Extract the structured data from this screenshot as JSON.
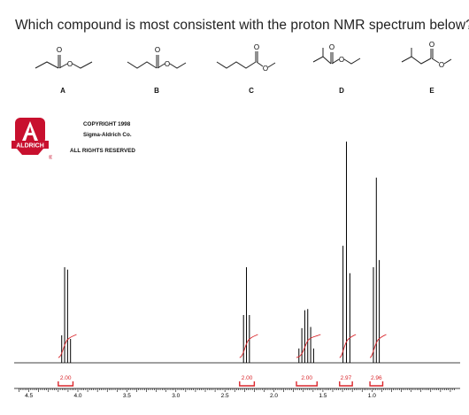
{
  "question": "Which compound is most consistent with the proton NMR spectrum below?",
  "compounds": [
    {
      "label": "A",
      "icon": "ester-structure-icon"
    },
    {
      "label": "B",
      "icon": "ester-structure-icon"
    },
    {
      "label": "C",
      "icon": "ester-structure-icon"
    },
    {
      "label": "D",
      "icon": "ester-structure-icon"
    },
    {
      "label": "E",
      "icon": "ester-structure-icon"
    }
  ],
  "atom_labels": {
    "oxygen": "O"
  },
  "logo": {
    "text": "ALDRICH",
    "registered": "®",
    "color": "#c8102e",
    "icon": "aldrich-logo-icon"
  },
  "copyright": {
    "line1": "COPYRIGHT 1998",
    "line2": "Sigma-Aldrich Co.",
    "line3": "ALL RIGHTS RESERVED"
  },
  "chart_data": {
    "type": "line",
    "title": "",
    "xlabel": "",
    "ylabel": "",
    "xlim": [
      4.65,
      0.1
    ],
    "x_reversed": true,
    "x_ticks": [
      "4.5",
      "4.0",
      "3.5",
      "3.0",
      "2.5",
      "2.0",
      "1.5",
      "1.0"
    ],
    "x_tick_values": [
      4.5,
      4.0,
      3.5,
      3.0,
      2.5,
      2.0,
      1.5,
      1.0
    ],
    "grid": false,
    "baseline_color": "#000000",
    "integral_color": "#d9262b",
    "peaks": [
      {
        "center": 4.12,
        "lines": [
          {
            "dx": -0.045,
            "h": 0.2
          },
          {
            "dx": -0.015,
            "h": 0.78
          },
          {
            "dx": 0.015,
            "h": 0.8
          },
          {
            "dx": 0.045,
            "h": 0.23
          }
        ]
      },
      {
        "center": 2.28,
        "lines": [
          {
            "dx": -0.03,
            "h": 0.4
          },
          {
            "dx": 0.0,
            "h": 0.8
          },
          {
            "dx": 0.03,
            "h": 0.4
          }
        ]
      },
      {
        "center": 1.67,
        "lines": [
          {
            "dx": -0.075,
            "h": 0.12
          },
          {
            "dx": -0.045,
            "h": 0.3
          },
          {
            "dx": -0.015,
            "h": 0.45
          },
          {
            "dx": 0.015,
            "h": 0.44
          },
          {
            "dx": 0.045,
            "h": 0.29
          },
          {
            "dx": 0.075,
            "h": 0.12
          }
        ]
      },
      {
        "center": 1.26,
        "lines": [
          {
            "dx": -0.035,
            "h": 0.75
          },
          {
            "dx": 0.0,
            "h": 1.86
          },
          {
            "dx": 0.035,
            "h": 0.98
          }
        ]
      },
      {
        "center": 0.955,
        "lines": [
          {
            "dx": -0.03,
            "h": 0.86
          },
          {
            "dx": 0.0,
            "h": 1.55
          },
          {
            "dx": 0.03,
            "h": 0.8
          }
        ]
      }
    ],
    "integrals": [
      {
        "from": 4.2,
        "to": 4.05,
        "value": "2.00"
      },
      {
        "from": 2.35,
        "to": 2.2,
        "value": "2.00"
      },
      {
        "from": 1.77,
        "to": 1.56,
        "value": "2.00"
      },
      {
        "from": 1.33,
        "to": 1.2,
        "value": "2.97"
      },
      {
        "from": 1.02,
        "to": 0.89,
        "value": "2.96"
      }
    ]
  }
}
